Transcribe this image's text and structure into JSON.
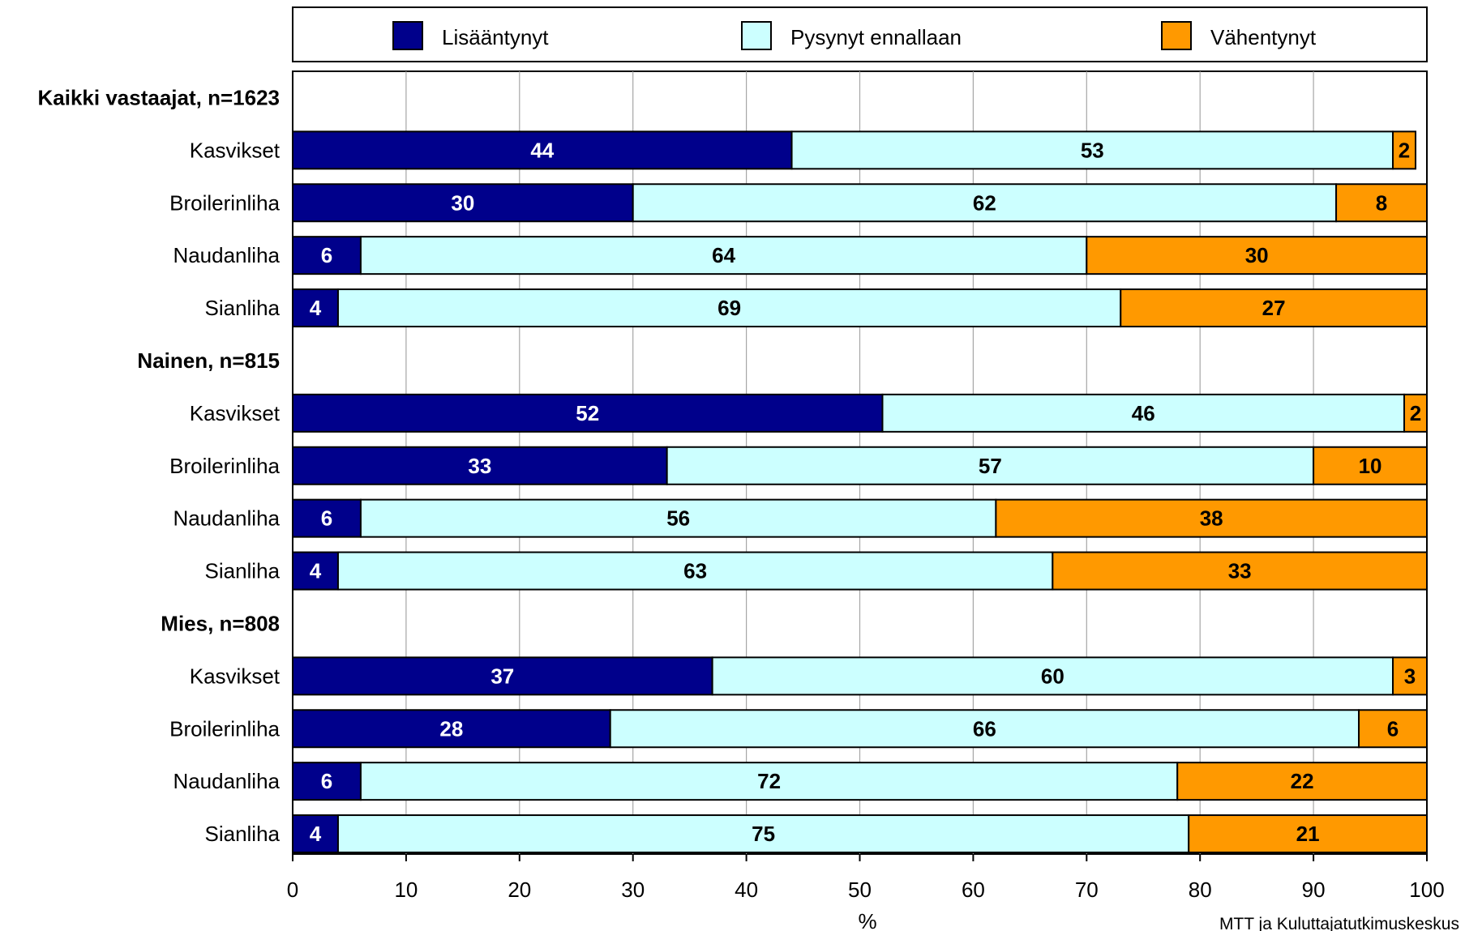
{
  "chart_data": {
    "type": "bar",
    "orientation": "horizontal",
    "stacked": true,
    "xlabel": "%",
    "xlim": [
      0,
      100
    ],
    "xticks": [
      0,
      10,
      20,
      30,
      40,
      50,
      60,
      70,
      80,
      90,
      100
    ],
    "grid": true,
    "legend_position": "top",
    "source": "MTT ja Kuluttajatutkimuskeskus",
    "series": [
      {
        "name": "Lisääntynyt",
        "color": "#00008B"
      },
      {
        "name": "Pysynyt ennallaan",
        "color": "#CCFFFF"
      },
      {
        "name": "Vähentynyt",
        "color": "#FF9900"
      }
    ],
    "groups": [
      {
        "label": "Kaikki vastaajat, n=1623",
        "rows": [
          {
            "label": "Kasvikset",
            "values": [
              44,
              53,
              2
            ]
          },
          {
            "label": "Broilerinliha",
            "values": [
              30,
              62,
              8
            ]
          },
          {
            "label": "Naudanliha",
            "values": [
              6,
              64,
              30
            ]
          },
          {
            "label": "Sianliha",
            "values": [
              4,
              69,
              27
            ]
          }
        ]
      },
      {
        "label": "Nainen, n=815",
        "rows": [
          {
            "label": "Kasvikset",
            "values": [
              52,
              46,
              2
            ]
          },
          {
            "label": "Broilerinliha",
            "values": [
              33,
              57,
              10
            ]
          },
          {
            "label": "Naudanliha",
            "values": [
              6,
              56,
              38
            ]
          },
          {
            "label": "Sianliha",
            "values": [
              4,
              63,
              33
            ]
          }
        ]
      },
      {
        "label": "Mies, n=808",
        "rows": [
          {
            "label": "Kasvikset",
            "values": [
              37,
              60,
              3
            ]
          },
          {
            "label": "Broilerinliha",
            "values": [
              28,
              66,
              6
            ]
          },
          {
            "label": "Naudanliha",
            "values": [
              6,
              72,
              22
            ]
          },
          {
            "label": "Sianliha",
            "values": [
              4,
              75,
              21
            ]
          }
        ]
      }
    ]
  }
}
